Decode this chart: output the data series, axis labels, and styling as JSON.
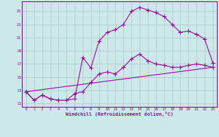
{
  "title": "",
  "xlabel": "Windchill (Refroidissement éolien,°C)",
  "ylabel": "",
  "background_color": "#cce8e8",
  "grid_color": "#aacccc",
  "line_color": "#990099",
  "xlim": [
    -0.5,
    23.5
  ],
  "ylim": [
    10.5,
    26.5
  ],
  "yticks": [
    11,
    13,
    15,
    17,
    19,
    21,
    23,
    25
  ],
  "xticks": [
    0,
    1,
    2,
    3,
    4,
    5,
    6,
    7,
    8,
    9,
    10,
    11,
    12,
    13,
    14,
    15,
    16,
    17,
    18,
    19,
    20,
    21,
    22,
    23
  ],
  "curve1_x": [
    0,
    1,
    2,
    3,
    4,
    5,
    6,
    7,
    8,
    9,
    10,
    11,
    12,
    13,
    14,
    15,
    16,
    17,
    18,
    19,
    20,
    21,
    22,
    23
  ],
  "curve1_y": [
    12.8,
    11.5,
    12.3,
    11.7,
    11.5,
    11.5,
    11.7,
    18.0,
    16.4,
    20.5,
    21.8,
    22.2,
    23.0,
    25.0,
    25.6,
    25.2,
    24.8,
    24.2,
    23.0,
    21.8,
    22.0,
    21.5,
    20.8,
    17.2
  ],
  "curve2_x": [
    0,
    1,
    2,
    3,
    4,
    5,
    6,
    7,
    8,
    9,
    10,
    11,
    12,
    13,
    14,
    15,
    16,
    17,
    18,
    19,
    20,
    21,
    22,
    23
  ],
  "curve2_y": [
    12.8,
    11.5,
    12.3,
    11.7,
    11.5,
    11.5,
    12.5,
    12.8,
    14.2,
    15.5,
    15.8,
    15.5,
    16.5,
    17.8,
    18.5,
    17.5,
    17.0,
    16.8,
    16.5,
    16.5,
    16.8,
    17.0,
    16.8,
    16.5
  ],
  "curve3_x": [
    0,
    23
  ],
  "curve3_y": [
    12.8,
    16.5
  ]
}
